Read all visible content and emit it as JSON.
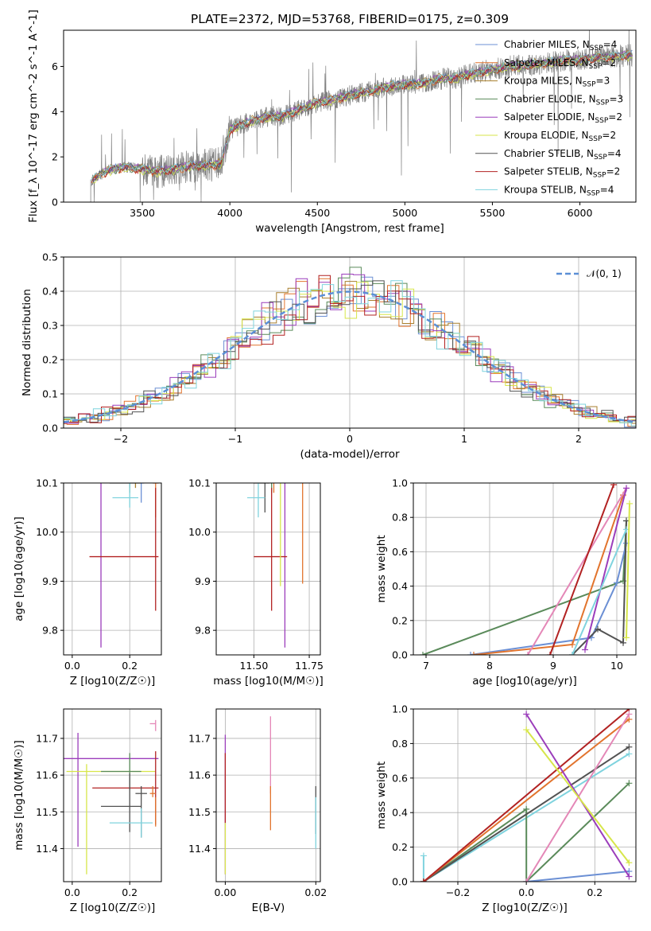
{
  "title": "PLATE=2372, MJD=53768, FIBERID=0175, z=0.309",
  "colors": {
    "Chabrier MILES": "#6b8fd4",
    "Salpeter MILES": "#e2742d",
    "Kroupa MILES": "#a87f2d",
    "Chabrier ELODIE": "#5a8a5a",
    "Salpeter ELODIE": "#9b3dbb",
    "Kroupa ELODIE": "#d7e64a",
    "Chabrier STELIB": "#525252",
    "Salpeter STELIB": "#b22222",
    "Kroupa STELIB": "#7fd3de",
    "pink": "#e487b7",
    "data": "#808080",
    "gauss": "#5b8fd6"
  },
  "chart_data": [
    {
      "id": "spectrum",
      "type": "line",
      "title": "PLATE=2372, MJD=53768, FIBERID=0175, z=0.309",
      "xlabel": "wavelength [Angstrom, rest frame]",
      "ylabel": "Flux [f_λ 10^-17 erg cm^-2 s^-1 A^-1]",
      "xlim": [
        3050,
        6320
      ],
      "ylim": [
        0,
        7.6
      ],
      "xticks": [
        3500,
        4000,
        4500,
        5000,
        5500,
        6000
      ],
      "yticks": [
        0,
        2,
        4,
        6
      ],
      "grid": false,
      "legend_position": "right",
      "series_names": [
        "Chabrier MILES, N_SSP=4",
        "Salpeter MILES, N_SSP=2",
        "Kroupa MILES, N_SSP=3",
        "Chabrier ELODIE, N_SSP=3",
        "Salpeter ELODIE, N_SSP=2",
        "Kroupa ELODIE, N_SSP=2",
        "Chabrier STELIB, N_SSP=4",
        "Salpeter STELIB, N_SSP=2",
        "Kroupa STELIB, N_SSP=4"
      ],
      "continuum": {
        "x": [
          3200,
          3300,
          3400,
          3500,
          3600,
          3700,
          3800,
          3900,
          3950,
          4000,
          4100,
          4200,
          4300,
          4400,
          4500,
          4600,
          4700,
          4800,
          4900,
          5000,
          5100,
          5200,
          5300,
          5400,
          5500,
          5600,
          5700,
          5800,
          5900,
          6000,
          6100,
          6200,
          6300
        ],
        "y": [
          0.9,
          1.4,
          1.55,
          1.45,
          1.35,
          1.5,
          1.6,
          1.65,
          1.7,
          3.2,
          3.55,
          3.75,
          3.8,
          4.1,
          4.4,
          4.55,
          4.75,
          4.9,
          5.1,
          5.2,
          5.25,
          5.45,
          5.5,
          5.7,
          5.85,
          6.0,
          6.05,
          6.15,
          6.25,
          6.3,
          6.4,
          6.45,
          6.5
        ]
      }
    },
    {
      "id": "residual-hist",
      "type": "bar",
      "xlabel": "(data-model)/error",
      "ylabel": "Normed distribution",
      "xlim": [
        -2.5,
        2.5
      ],
      "ylim": [
        0,
        0.5
      ],
      "xticks": [
        -2,
        -1,
        0,
        1,
        2
      ],
      "xticklabels": [
        "−2",
        "−1",
        "0",
        "1",
        "2"
      ],
      "yticks": [
        0,
        0.1,
        0.2,
        0.3,
        0.4,
        0.5
      ],
      "yticklabels": [
        "0.0",
        "0.1",
        "0.2",
        "0.3",
        "0.4",
        "0.5"
      ],
      "grid": true,
      "legend_position": "top-right",
      "gauss_label": "𝒩(0, 1)",
      "bin_width": 0.1
    },
    {
      "id": "age-vs-Z",
      "type": "scatter",
      "xlabel": "Z [log10(Z/Z☉)]",
      "ylabel": "age [log10(age/yr)]",
      "xlim": [
        -0.03,
        0.31
      ],
      "ylim": [
        9.75,
        10.1
      ],
      "xticks": [
        0.0,
        0.2
      ],
      "xticklabels": [
        "0.0",
        "0.2"
      ],
      "yticks": [
        9.8,
        9.9,
        10.0,
        10.1
      ],
      "yticklabels": [
        "9.8",
        "9.9",
        "10.0",
        "10.1"
      ],
      "grid": true
    },
    {
      "id": "age-vs-mass",
      "type": "scatter",
      "xlabel": "mass [log10(M/M☉)]",
      "ylabel": "",
      "xlim": [
        11.33,
        11.8
      ],
      "ylim": [
        9.75,
        10.1
      ],
      "xticks": [
        11.5,
        11.75
      ],
      "xticklabels": [
        "11.50",
        "11.75"
      ],
      "yticks": [
        9.8,
        9.9,
        10.0,
        10.1
      ],
      "yticklabels": [
        "9.8",
        "9.9",
        "10.0",
        "10.1"
      ],
      "grid": true
    },
    {
      "id": "weight-vs-age",
      "type": "line",
      "xlabel": "age [log10(age/yr)]",
      "ylabel": "mass weight",
      "xlim": [
        6.8,
        10.3
      ],
      "ylim": [
        0,
        1
      ],
      "xticks": [
        7,
        8,
        9,
        10
      ],
      "yticks": [
        0,
        0.2,
        0.4,
        0.6,
        0.8,
        1.0
      ],
      "yticklabels": [
        "0.0",
        "0.2",
        "0.4",
        "0.6",
        "0.8",
        "1.0"
      ],
      "grid": true
    },
    {
      "id": "mass-vs-Z",
      "type": "scatter",
      "xlabel": "Z [log10(Z/Z☉)]",
      "ylabel": "mass [log10(M/M☉)]",
      "xlim": [
        -0.03,
        0.31
      ],
      "ylim": [
        11.31,
        11.78
      ],
      "xticks": [
        0.0,
        0.2
      ],
      "xticklabels": [
        "0.0",
        "0.2"
      ],
      "yticks": [
        11.4,
        11.5,
        11.6,
        11.7
      ],
      "yticklabels": [
        "11.4",
        "11.5",
        "11.6",
        "11.7"
      ],
      "grid": true
    },
    {
      "id": "mass-vs-ebv",
      "type": "scatter",
      "xlabel": "E(B-V)",
      "ylabel": "",
      "xlim": [
        -0.002,
        0.021
      ],
      "ylim": [
        11.31,
        11.78
      ],
      "xticks": [
        0.0,
        0.02
      ],
      "xticklabels": [
        "0.00",
        "0.02"
      ],
      "yticks": [
        11.4,
        11.5,
        11.6,
        11.7
      ],
      "yticklabels": [
        "11.4",
        "11.5",
        "11.6",
        "11.7"
      ],
      "grid": true
    },
    {
      "id": "weight-vs-Z",
      "type": "line",
      "xlabel": "Z [log10(Z/Z☉)]",
      "ylabel": "mass weight",
      "xlim": [
        -0.33,
        0.32
      ],
      "ylim": [
        0,
        1
      ],
      "xticks": [
        -0.2,
        0.0,
        0.2
      ],
      "xticklabels": [
        "−0.2",
        "0.0",
        "0.2"
      ],
      "yticks": [
        0,
        0.2,
        0.4,
        0.6,
        0.8,
        1.0
      ],
      "yticklabels": [
        "0.0",
        "0.2",
        "0.4",
        "0.6",
        "0.8",
        "1.0"
      ],
      "grid": true
    }
  ]
}
